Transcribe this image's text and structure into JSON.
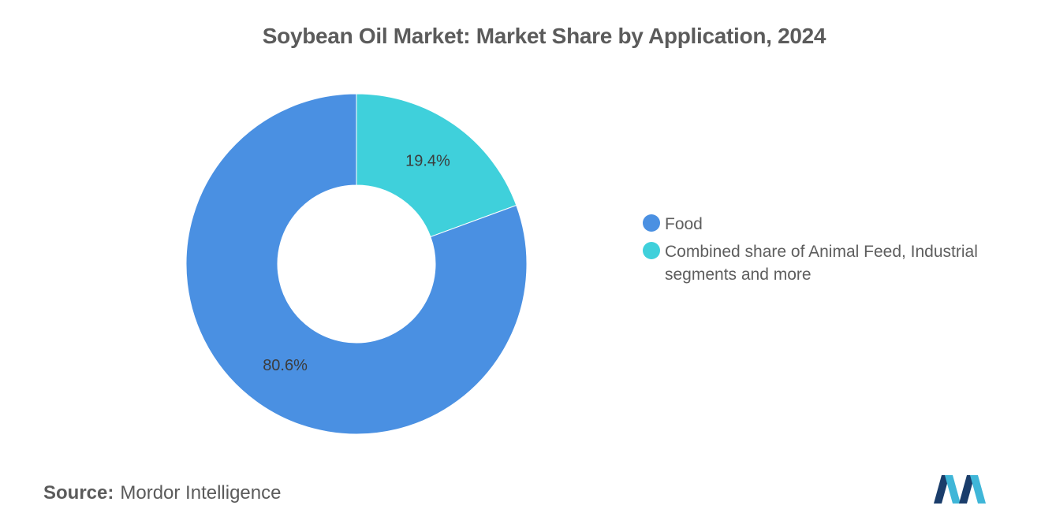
{
  "chart_data": {
    "type": "pie",
    "donut": true,
    "title": "Soybean Oil Market: Market Share by Application, 2024",
    "slices": [
      {
        "label": "Combined share of Animal Feed, Industrial segments and more",
        "value": 19.4,
        "display": "19.4%",
        "color": "#3fd0db"
      },
      {
        "label": "Food",
        "value": 80.6,
        "display": "80.6%",
        "color": "#4a90e2"
      }
    ],
    "legend": {
      "placement": "right",
      "items": [
        {
          "label": "Food",
          "color": "#4a90e2"
        },
        {
          "label": "Combined share of Animal Feed, Industrial segments and more",
          "color": "#3fd0db"
        }
      ]
    }
  },
  "source": {
    "label": "Source:",
    "value": "Mordor Intelligence"
  },
  "logo": {
    "icon": "mordor-intelligence-logo",
    "colors": [
      "#1a3d6b",
      "#3fb6d8"
    ]
  }
}
